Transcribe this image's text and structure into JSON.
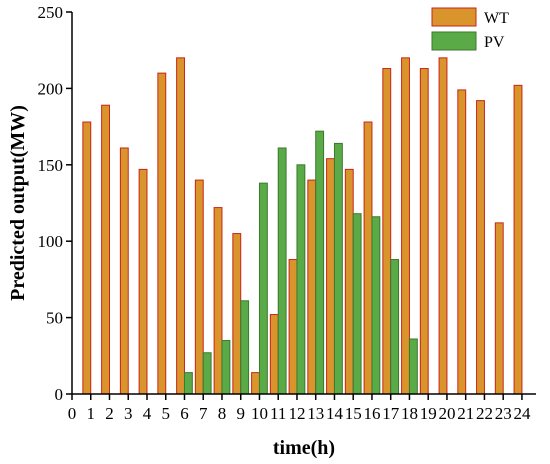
{
  "chart_data": {
    "type": "bar",
    "xlabel": "time(h)",
    "ylabel": "Predicted output(MW)",
    "ylim": [
      0,
      250
    ],
    "yticks": [
      0,
      50,
      100,
      150,
      200,
      250
    ],
    "xticks": [
      "0",
      "1",
      "2",
      "3",
      "4",
      "5",
      "6",
      "7",
      "8",
      "9",
      "10",
      "11",
      "12",
      "13",
      "14",
      "15",
      "16",
      "17",
      "18",
      "19",
      "20",
      "21",
      "22",
      "23",
      "24"
    ],
    "x": [
      1,
      2,
      3,
      4,
      5,
      6,
      7,
      8,
      9,
      10,
      11,
      12,
      13,
      14,
      15,
      16,
      17,
      18,
      19,
      20,
      21,
      22,
      23,
      24
    ],
    "legend_position": "top-right",
    "series": [
      {
        "name": "WT",
        "color": "#D9952B",
        "edge": "#C8241B",
        "values": [
          178,
          189,
          161,
          147,
          210,
          220,
          140,
          122,
          105,
          14,
          52,
          88,
          140,
          154,
          147,
          178,
          213,
          220,
          213,
          220,
          199,
          192,
          112,
          202
        ]
      },
      {
        "name": "PV",
        "color": "#5AAA48",
        "edge": "#3A7A2E",
        "values": [
          0,
          0,
          0,
          0,
          0,
          14,
          27,
          35,
          61,
          138,
          161,
          150,
          172,
          164,
          118,
          116,
          88,
          36,
          0,
          0,
          0,
          0,
          0,
          0
        ]
      }
    ]
  }
}
